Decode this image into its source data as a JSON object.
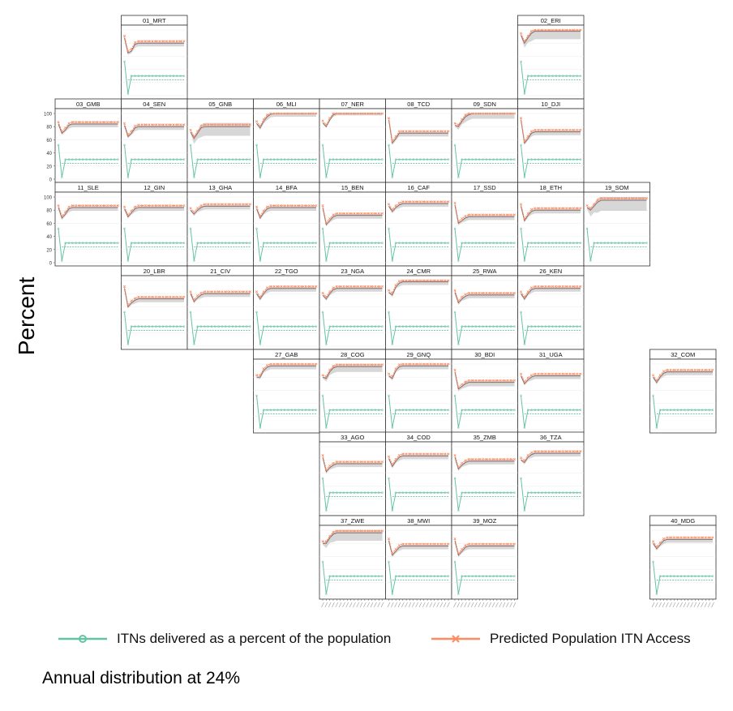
{
  "y_axis_label": "Percent",
  "legend": {
    "delivered_label": "ITNs delivered as a percent of the population",
    "access_label": "Predicted Population ITN Access"
  },
  "caption": "Annual distribution at 24%",
  "colors": {
    "delivered": "#66c2a5",
    "access": "#fc8d62",
    "ribbon": "#bdbdbd",
    "median_line": "#8c6b6b"
  },
  "chart_data": {
    "type": "line",
    "title": "",
    "ylabel": "Percent",
    "ylim": [
      0,
      100
    ],
    "y_ticks": [
      0,
      20,
      40,
      60,
      80,
      100
    ],
    "x_tick_labels_visible": false,
    "series_names": [
      "ITNs delivered as a percent of the population",
      "Predicted Population ITN Access"
    ],
    "delivered_pattern": [
      52,
      3,
      30,
      30,
      30,
      30,
      30,
      30,
      30,
      30,
      30,
      30,
      30,
      30,
      30,
      30,
      30,
      30
    ],
    "delivered_lower": 24,
    "panels": [
      {
        "label": "01_MRT",
        "access": [
          88,
          65,
          68,
          78,
          80,
          80,
          80,
          80,
          80,
          80,
          80,
          80,
          80,
          80,
          80,
          80,
          80,
          80
        ],
        "band": 5
      },
      {
        "label": "02_ERI",
        "access": [
          92,
          80,
          88,
          95,
          98,
          98,
          98,
          98,
          98,
          98,
          98,
          98,
          98,
          98,
          98,
          98,
          98,
          98
        ],
        "band": 12
      },
      {
        "label": "03_GMB",
        "access": [
          84,
          70,
          75,
          82,
          84,
          84,
          84,
          84,
          84,
          84,
          84,
          84,
          84,
          84,
          84,
          84,
          84,
          84
        ],
        "band": 5
      },
      {
        "label": "04_SEN",
        "access": [
          82,
          65,
          70,
          78,
          80,
          80,
          80,
          80,
          80,
          80,
          80,
          80,
          80,
          80,
          80,
          80,
          80,
          80
        ],
        "band": 5
      },
      {
        "label": "05_GNB",
        "access": [
          72,
          62,
          70,
          78,
          80,
          80,
          80,
          80,
          80,
          80,
          80,
          80,
          80,
          80,
          80,
          80,
          80,
          80
        ],
        "band": 14
      },
      {
        "label": "06_MLI",
        "access": [
          85,
          78,
          88,
          95,
          99,
          100,
          100,
          100,
          100,
          100,
          100,
          100,
          100,
          100,
          100,
          100,
          100,
          100
        ],
        "band": 5
      },
      {
        "label": "07_NER",
        "access": [
          86,
          80,
          90,
          98,
          100,
          100,
          100,
          100,
          100,
          100,
          100,
          100,
          100,
          100,
          100,
          100,
          100,
          100
        ],
        "band": 3
      },
      {
        "label": "08_TCD",
        "access": [
          90,
          55,
          62,
          70,
          70,
          70,
          70,
          70,
          70,
          70,
          70,
          70,
          70,
          70,
          70,
          70,
          70,
          70
        ],
        "band": 5
      },
      {
        "label": "09_SDN",
        "access": [
          82,
          80,
          88,
          95,
          98,
          100,
          100,
          100,
          100,
          100,
          100,
          100,
          100,
          100,
          100,
          100,
          100,
          100
        ],
        "band": 8
      },
      {
        "label": "10_DJI",
        "access": [
          90,
          55,
          62,
          70,
          72,
          72,
          72,
          72,
          72,
          72,
          72,
          72,
          72,
          72,
          72,
          72,
          72,
          72
        ],
        "band": 5
      },
      {
        "label": "11_SLE",
        "access": [
          84,
          68,
          74,
          82,
          84,
          84,
          84,
          84,
          84,
          84,
          84,
          84,
          84,
          84,
          84,
          84,
          84,
          84
        ],
        "band": 5
      },
      {
        "label": "12_GIN",
        "access": [
          82,
          70,
          76,
          82,
          84,
          84,
          84,
          84,
          84,
          84,
          84,
          84,
          84,
          84,
          84,
          84,
          84,
          84
        ],
        "band": 5
      },
      {
        "label": "13_GHA",
        "access": [
          80,
          74,
          80,
          84,
          86,
          86,
          86,
          86,
          86,
          86,
          86,
          86,
          86,
          86,
          86,
          86,
          86,
          86
        ],
        "band": 5
      },
      {
        "label": "14_BFA",
        "access": [
          82,
          68,
          76,
          82,
          84,
          84,
          84,
          84,
          84,
          84,
          84,
          84,
          84,
          84,
          84,
          84,
          84,
          84
        ],
        "band": 5
      },
      {
        "label": "15_BEN",
        "access": [
          84,
          58,
          64,
          70,
          72,
          72,
          72,
          72,
          72,
          72,
          72,
          72,
          72,
          72,
          72,
          72,
          72,
          72
        ],
        "band": 5
      },
      {
        "label": "16_CAF",
        "access": [
          86,
          78,
          84,
          88,
          90,
          90,
          90,
          90,
          90,
          90,
          90,
          90,
          90,
          90,
          90,
          90,
          90,
          90
        ],
        "band": 5
      },
      {
        "label": "17_SSD",
        "access": [
          88,
          60,
          64,
          68,
          70,
          70,
          70,
          70,
          70,
          70,
          70,
          70,
          70,
          70,
          70,
          70,
          70,
          70
        ],
        "band": 5
      },
      {
        "label": "18_ETH",
        "access": [
          86,
          64,
          72,
          78,
          80,
          80,
          80,
          80,
          80,
          80,
          80,
          80,
          80,
          80,
          80,
          80,
          80,
          80
        ],
        "band": 5
      },
      {
        "label": "19_SOM",
        "access": [
          84,
          80,
          86,
          92,
          95,
          95,
          95,
          95,
          95,
          95,
          95,
          95,
          95,
          95,
          95,
          95,
          95,
          95
        ],
        "band": 16
      },
      {
        "label": "20_LBR",
        "access": [
          88,
          60,
          66,
          70,
          72,
          72,
          72,
          72,
          72,
          72,
          72,
          72,
          72,
          72,
          72,
          72,
          72,
          72
        ],
        "band": 5
      },
      {
        "label": "21_CIV",
        "access": [
          80,
          68,
          74,
          78,
          80,
          80,
          80,
          80,
          80,
          80,
          80,
          80,
          80,
          80,
          80,
          80,
          80,
          80
        ],
        "band": 5
      },
      {
        "label": "22_TGO",
        "access": [
          80,
          72,
          80,
          86,
          88,
          88,
          88,
          88,
          88,
          88,
          88,
          88,
          88,
          88,
          88,
          88,
          88,
          88
        ],
        "band": 5
      },
      {
        "label": "23_NGA",
        "access": [
          78,
          72,
          80,
          86,
          88,
          88,
          88,
          88,
          88,
          88,
          88,
          88,
          88,
          88,
          88,
          88,
          88,
          88
        ],
        "band": 5
      },
      {
        "label": "24_CMR",
        "access": [
          82,
          78,
          90,
          96,
          98,
          98,
          98,
          98,
          98,
          98,
          98,
          98,
          98,
          98,
          98,
          98,
          98,
          98
        ],
        "band": 5
      },
      {
        "label": "25_RWA",
        "access": [
          82,
          66,
          72,
          76,
          78,
          78,
          78,
          78,
          78,
          78,
          78,
          78,
          78,
          78,
          78,
          78,
          78,
          78
        ],
        "band": 5
      },
      {
        "label": "26_KEN",
        "access": [
          80,
          72,
          80,
          86,
          88,
          88,
          88,
          88,
          88,
          88,
          88,
          88,
          88,
          88,
          88,
          88,
          88,
          88
        ],
        "band": 5
      },
      {
        "label": "27_GAB",
        "access": [
          80,
          80,
          90,
          95,
          97,
          97,
          97,
          97,
          97,
          97,
          97,
          97,
          97,
          97,
          97,
          97,
          97,
          97
        ],
        "band": 5
      },
      {
        "label": "28_COG",
        "access": [
          80,
          78,
          88,
          94,
          96,
          96,
          96,
          96,
          96,
          96,
          96,
          96,
          96,
          96,
          96,
          96,
          96,
          96
        ],
        "band": 8
      },
      {
        "label": "29_GNQ",
        "access": [
          82,
          78,
          90,
          96,
          97,
          97,
          97,
          97,
          97,
          97,
          97,
          97,
          97,
          97,
          97,
          97,
          97,
          97
        ],
        "band": 5
      },
      {
        "label": "30_BDI",
        "access": [
          88,
          62,
          66,
          70,
          72,
          72,
          72,
          72,
          72,
          72,
          72,
          72,
          72,
          72,
          72,
          72,
          72,
          72
        ],
        "band": 6
      },
      {
        "label": "31_UGA",
        "access": [
          82,
          70,
          76,
          80,
          82,
          82,
          82,
          82,
          82,
          82,
          82,
          82,
          82,
          82,
          82,
          82,
          82,
          82
        ],
        "band": 5
      },
      {
        "label": "32_COM",
        "access": [
          80,
          72,
          80,
          86,
          88,
          88,
          88,
          88,
          88,
          88,
          88,
          88,
          88,
          88,
          88,
          88,
          88,
          88
        ],
        "band": 5
      },
      {
        "label": "33_AGO",
        "access": [
          84,
          62,
          68,
          72,
          74,
          74,
          74,
          74,
          74,
          74,
          74,
          74,
          74,
          74,
          74,
          74,
          74,
          74
        ],
        "band": 5
      },
      {
        "label": "34_COD",
        "access": [
          82,
          70,
          78,
          84,
          86,
          86,
          86,
          86,
          86,
          86,
          86,
          86,
          86,
          86,
          86,
          86,
          86,
          86
        ],
        "band": 5
      },
      {
        "label": "35_ZMB",
        "access": [
          84,
          66,
          72,
          76,
          78,
          78,
          78,
          78,
          78,
          78,
          78,
          78,
          78,
          78,
          78,
          78,
          78,
          78
        ],
        "band": 5
      },
      {
        "label": "36_TZA",
        "access": [
          80,
          76,
          84,
          88,
          90,
          90,
          90,
          90,
          90,
          90,
          90,
          90,
          90,
          90,
          90,
          90,
          90,
          90
        ],
        "band": 5
      },
      {
        "label": "37_ZWE",
        "access": [
          80,
          80,
          88,
          94,
          96,
          96,
          96,
          96,
          96,
          96,
          96,
          96,
          96,
          96,
          96,
          96,
          96,
          96
        ],
        "band": 12
      },
      {
        "label": "38_MWI",
        "access": [
          84,
          62,
          68,
          74,
          76,
          76,
          76,
          76,
          76,
          76,
          76,
          76,
          76,
          76,
          76,
          76,
          76,
          76
        ],
        "band": 5
      },
      {
        "label": "39_MOZ",
        "access": [
          84,
          62,
          68,
          74,
          76,
          76,
          76,
          76,
          76,
          76,
          76,
          76,
          76,
          76,
          76,
          76,
          76,
          76
        ],
        "band": 5
      },
      {
        "label": "40_MDG",
        "access": [
          80,
          72,
          78,
          84,
          86,
          86,
          86,
          86,
          86,
          86,
          86,
          86,
          86,
          86,
          86,
          86,
          86,
          86
        ],
        "band": 5
      }
    ]
  }
}
